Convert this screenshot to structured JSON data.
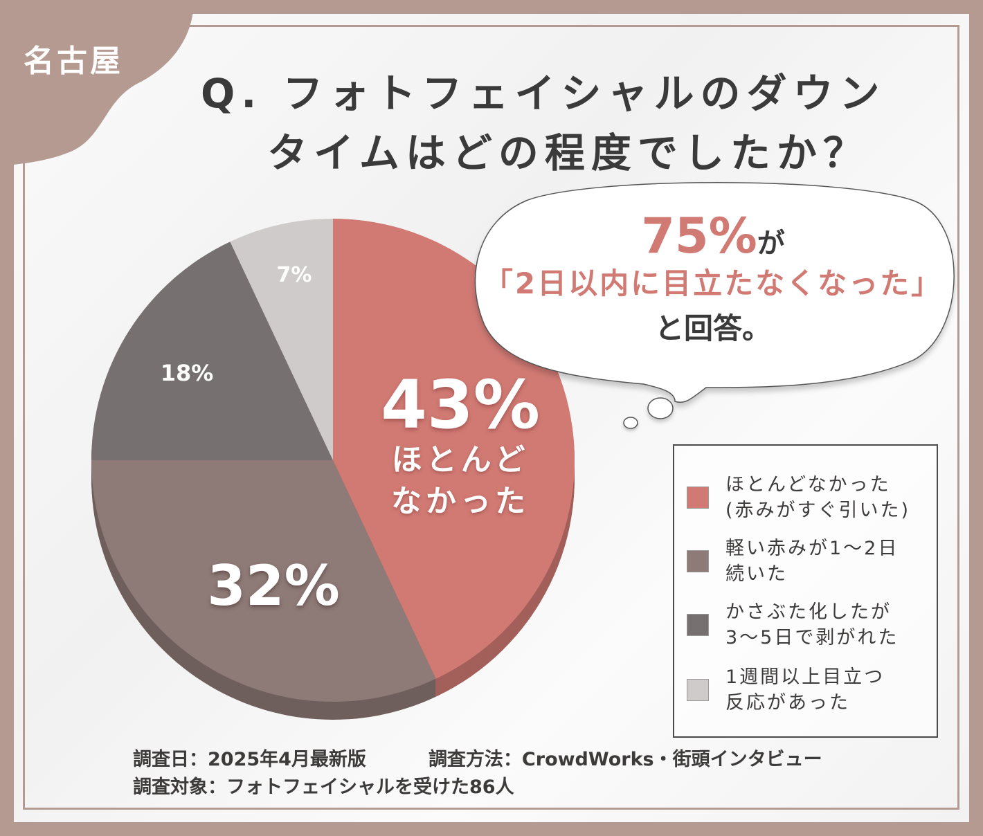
{
  "city_badge": "名古屋",
  "title": {
    "line1": "Q. フォトフェイシャルのダウン",
    "line2": "タイムはどの程度でしたか？"
  },
  "callout": {
    "percent": "75%",
    "suffix": "が",
    "quote": "「2日以内に目立たなくなった」",
    "answer": "と回答。"
  },
  "chart_data": {
    "type": "pie",
    "slices": [
      {
        "label": "ほとんどなかった(赤みがすぐ引いた)",
        "value": 43,
        "display": "43%",
        "inner_label": "ほとんど\nなかった",
        "color": "#d17a74"
      },
      {
        "label": "軽い赤みが1〜2日続いた",
        "value": 32,
        "display": "32%",
        "color": "#8e7a76"
      },
      {
        "label": "かさぶた化したが3〜5日で剥がれた",
        "value": 18,
        "display": "18%",
        "color": "#767170"
      },
      {
        "label": "1週間以上目立つ反応があった",
        "value": 7,
        "display": "7%",
        "color": "#cfcbcb"
      }
    ],
    "legend_placement": "right"
  },
  "legend": [
    "ほとんどなかった\n(赤みがすぐ引いた)",
    "軽い赤みが1〜2日\n続いた",
    "かさぶた化したが\n3〜5日で剥がれた",
    "1週間以上目立つ\n反応があった"
  ],
  "footer": {
    "date": "調査日：2025年4月最新版",
    "method": "調査方法：CrowdWorks・街頭インタビュー",
    "target": "調査対象：フォトフェイシャルを受けた86人"
  },
  "colors": {
    "frame": "#b59a92",
    "accent": "#d17a74"
  }
}
